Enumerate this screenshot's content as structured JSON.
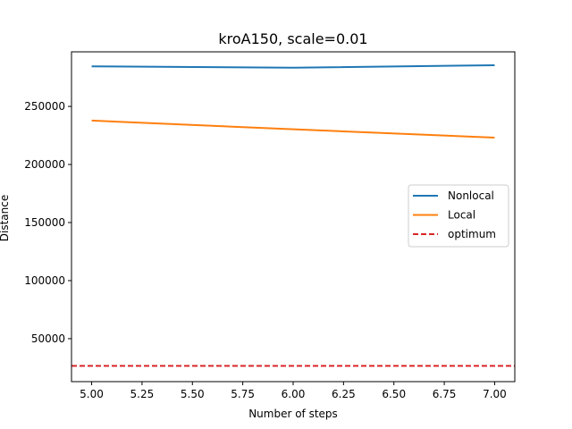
{
  "chart_data": {
    "type": "line",
    "title": "kroA150, scale=0.01",
    "xlabel": "Number of steps",
    "ylabel": "Distance",
    "xlim": [
      4.9,
      7.1
    ],
    "ylim": [
      13000,
      297000
    ],
    "xticks": [
      5.0,
      5.25,
      5.5,
      5.75,
      6.0,
      6.25,
      6.5,
      6.75,
      7.0
    ],
    "xtick_labels": [
      "5.00",
      "5.25",
      "5.50",
      "5.75",
      "6.00",
      "6.25",
      "6.50",
      "6.75",
      "7.00"
    ],
    "yticks": [
      50000,
      100000,
      150000,
      200000,
      250000
    ],
    "ytick_labels": [
      "50000",
      "100000",
      "150000",
      "200000",
      "250000"
    ],
    "grid": false,
    "legend_position": "center-right",
    "series": [
      {
        "name": "Nonlocal",
        "x": [
          5,
          6,
          7
        ],
        "y": [
          284500,
          283300,
          285500
        ],
        "color": "#1f77b4",
        "style": "solid"
      },
      {
        "name": "Local",
        "x": [
          5,
          6,
          7
        ],
        "y": [
          237800,
          230300,
          223100
        ],
        "color": "#ff7f0e",
        "style": "solid"
      },
      {
        "name": "optimum",
        "hline": 26524,
        "color": "#d62728",
        "style": "dashed"
      }
    ]
  }
}
